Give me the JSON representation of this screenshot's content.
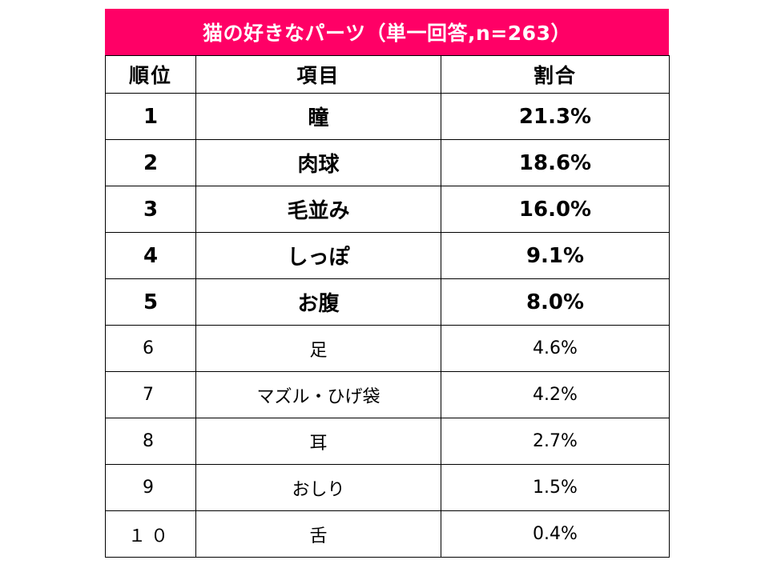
{
  "title": "猫の好きなパーツ（単一回答,n=263）",
  "colors": {
    "title_background": "#ff0066",
    "title_text": "#ffffff",
    "border": "#000000"
  },
  "chart_data": {
    "type": "table",
    "title": "猫の好きなパーツ（単一回答,n=263）",
    "columns": [
      "順位",
      "項目",
      "割合"
    ],
    "rows": [
      {
        "rank": "1",
        "item": "瞳",
        "percent": "21.3%",
        "value": 21.3,
        "emphasis": true
      },
      {
        "rank": "2",
        "item": "肉球",
        "percent": "18.6%",
        "value": 18.6,
        "emphasis": true
      },
      {
        "rank": "3",
        "item": "毛並み",
        "percent": "16.0%",
        "value": 16.0,
        "emphasis": true
      },
      {
        "rank": "4",
        "item": "しっぽ",
        "percent": "9.1%",
        "value": 9.1,
        "emphasis": true
      },
      {
        "rank": "5",
        "item": "お腹",
        "percent": "8.0%",
        "value": 8.0,
        "emphasis": true
      },
      {
        "rank": "6",
        "item": "足",
        "percent": "4.6%",
        "value": 4.6,
        "emphasis": false
      },
      {
        "rank": "7",
        "item": "マズル・ひげ袋",
        "percent": "4.2%",
        "value": 4.2,
        "emphasis": false
      },
      {
        "rank": "8",
        "item": "耳",
        "percent": "2.7%",
        "value": 2.7,
        "emphasis": false
      },
      {
        "rank": "9",
        "item": "おしり",
        "percent": "1.5%",
        "value": 1.5,
        "emphasis": false
      },
      {
        "rank": "１０",
        "item": "舌",
        "percent": "0.4%",
        "value": 0.4,
        "emphasis": false
      }
    ]
  }
}
